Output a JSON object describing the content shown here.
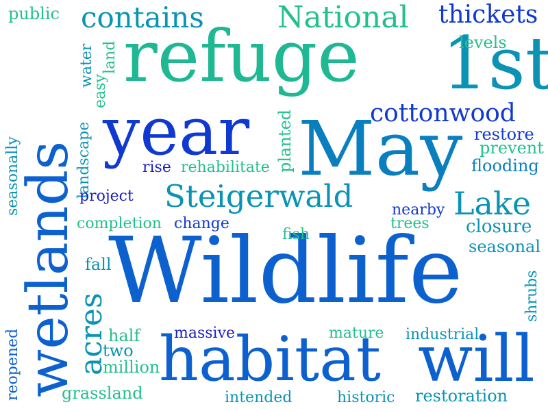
{
  "colors": {
    "background": "#ffffff",
    "teal": "#1fb893",
    "green": "#22c08a",
    "cyan": "#0a93b5",
    "sky": "#0a7fc0",
    "blue": "#0c61cf",
    "royal": "#1039d2",
    "indigo": "#1a1fbf"
  },
  "words": {
    "wildlife": "Wildlife",
    "refuge": "refuge",
    "wetlands": "wetlands",
    "may": "May",
    "year": "year",
    "habitat": "habitat",
    "will": "will",
    "first": "1st",
    "national": "National",
    "contains": "contains",
    "thickets": "thickets",
    "steigerwald": "Steigerwald",
    "lake": "Lake",
    "cottonwood": "cottonwood",
    "acres": "acres",
    "public": "public",
    "water": "water",
    "land": "land",
    "easy": "easy",
    "levels": "levels",
    "landscape": "landscape",
    "seasonally": "seasonally",
    "planted": "planted",
    "restore": "restore",
    "prevent": "prevent",
    "flooding": "flooding",
    "rise": "rise",
    "rehabilitate": "rehabilitate",
    "project": "project",
    "completion": "completion",
    "change": "change",
    "nearby": "nearby",
    "trees": "trees",
    "closure": "closure",
    "fish": "fish",
    "seasonal": "seasonal",
    "fall": "fall",
    "shrubs": "shrubs",
    "reopened": "reopened",
    "half": "half",
    "massive": "massive",
    "mature": "mature",
    "industrial": "industrial",
    "two": "two",
    "million": "million",
    "grassland": "grassland",
    "intended": "intended",
    "historic": "historic",
    "restoration": "restoration"
  }
}
